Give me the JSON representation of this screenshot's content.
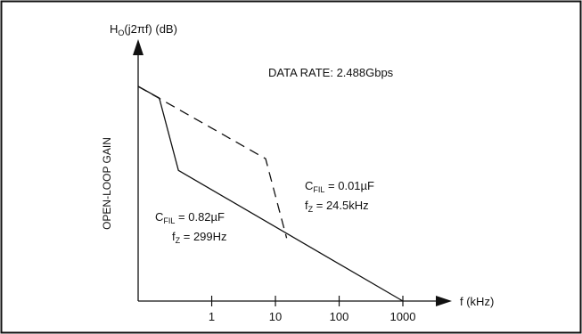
{
  "chart_data": {
    "type": "line",
    "ylabel_main": "H",
    "ylabel_sub": "O",
    "ylabel_rest": "(j2πf) (dB)",
    "ylabel_side": "OPEN-LOOP GAIN",
    "xlabel": "f (kHz)",
    "annotation_rate": "DATA RATE: 2.488Gbps",
    "xscale": "log",
    "xlim": [
      0.07,
      1000
    ],
    "y_units": "relative (no scale printed)",
    "ylim": [
      0,
      100
    ],
    "ticks": [
      "1",
      "10",
      "100",
      "1000"
    ],
    "tick_values": [
      1,
      10,
      100,
      1000
    ],
    "series": [
      {
        "style": "solid",
        "x": [
          0.07,
          0.15,
          0.3,
          1000
        ],
        "y": [
          92,
          87,
          56,
          0
        ]
      },
      {
        "style": "dashed",
        "x": [
          0.07,
          7,
          15
        ],
        "y": [
          92,
          61,
          27
        ]
      }
    ],
    "labels": [
      {
        "c_main": "C",
        "c_sub": "FIL",
        "c_rest": " = 0.82µF",
        "f_main": "f",
        "f_sub": "Z",
        "f_rest": " = 299Hz"
      },
      {
        "c_main": "C",
        "c_sub": "FIL",
        "c_rest": " = 0.01µF",
        "f_main": "f",
        "f_sub": "Z",
        "f_rest": " = 24.5kHz"
      }
    ]
  }
}
